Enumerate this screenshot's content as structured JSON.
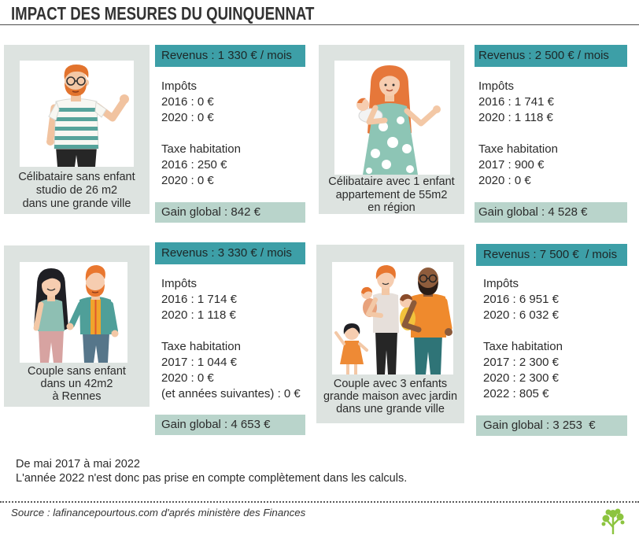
{
  "title": "IMPACT DES MESURES DU QUINQUENNAT",
  "colors": {
    "teal": "#3d9fa7",
    "card": "#dde3e0",
    "gain": "#b9d4cb",
    "text": "#2b2b2b",
    "logo": "#8cc43f"
  },
  "panels": [
    {
      "illustration": "single-man-illustration",
      "caption": [
        "Célibataire sans enfant",
        "studio de 26 m2",
        "dans une grande ville"
      ],
      "income": "Revenus : 1 330 € / mois",
      "taxes": {
        "label": "Impôts",
        "lines": [
          "2016 : 0 €",
          "2020 : 0 €"
        ]
      },
      "housing_tax": {
        "label": "Taxe habitation",
        "lines": [
          "2016 : 250 €",
          "2020 : 0 €"
        ]
      },
      "gain": "Gain global : 842 €"
    },
    {
      "illustration": "woman-with-baby-illustration",
      "caption": [
        "Célibataire avec 1 enfant",
        "appartement de 55m2",
        "en région"
      ],
      "income": "Revenus : 2 500 € / mois",
      "taxes": {
        "label": "Impôts",
        "lines": [
          "2016 : 1 741 €",
          "2020 : 1 118 €"
        ]
      },
      "housing_tax": {
        "label": "Taxe habitation",
        "lines": [
          "2017 : 900 €",
          "2020 : 0 €"
        ]
      },
      "gain": "Gain global : 4 528 €"
    },
    {
      "illustration": "couple-illustration",
      "caption": [
        "Couple sans enfant",
        "dans un 42m2",
        "à Rennes"
      ],
      "income": "Revenus : 3 330 € / mois",
      "taxes": {
        "label": "Impôts",
        "lines": [
          "2016 : 1 714 €",
          "2020 : 1 118 €"
        ]
      },
      "housing_tax": {
        "label": "Taxe habitation",
        "lines": [
          "2017 : 1 044 €",
          "2020 : 0 €",
          "(et années suivantes) : 0 €"
        ]
      },
      "gain": "Gain global : 4 653 €"
    },
    {
      "illustration": "family-illustration",
      "caption": [
        "Couple avec 3 enfants",
        "grande maison avec jardin",
        "dans une grande ville"
      ],
      "income": "Revenus : 7 500 €  / mois",
      "taxes": {
        "label": "Impôts",
        "lines": [
          "2016 : 6 951 €",
          "2020 : 6 032 €"
        ]
      },
      "housing_tax": {
        "label": "Taxe habitation",
        "lines": [
          "2017 : 2 300 €",
          "2020 : 2 300 €",
          "2022 : 805 €"
        ]
      },
      "gain": "Gain global : 3 253  €"
    }
  ],
  "notes": [
    "De mai 2017 à mai 2022",
    "L'année 2022 n'est donc pas prise en compte complètement dans les calculs."
  ],
  "source": "Source : lafinancepourtous.com d'aprés ministère des Finances",
  "logo_icon": "tree-logo-icon"
}
